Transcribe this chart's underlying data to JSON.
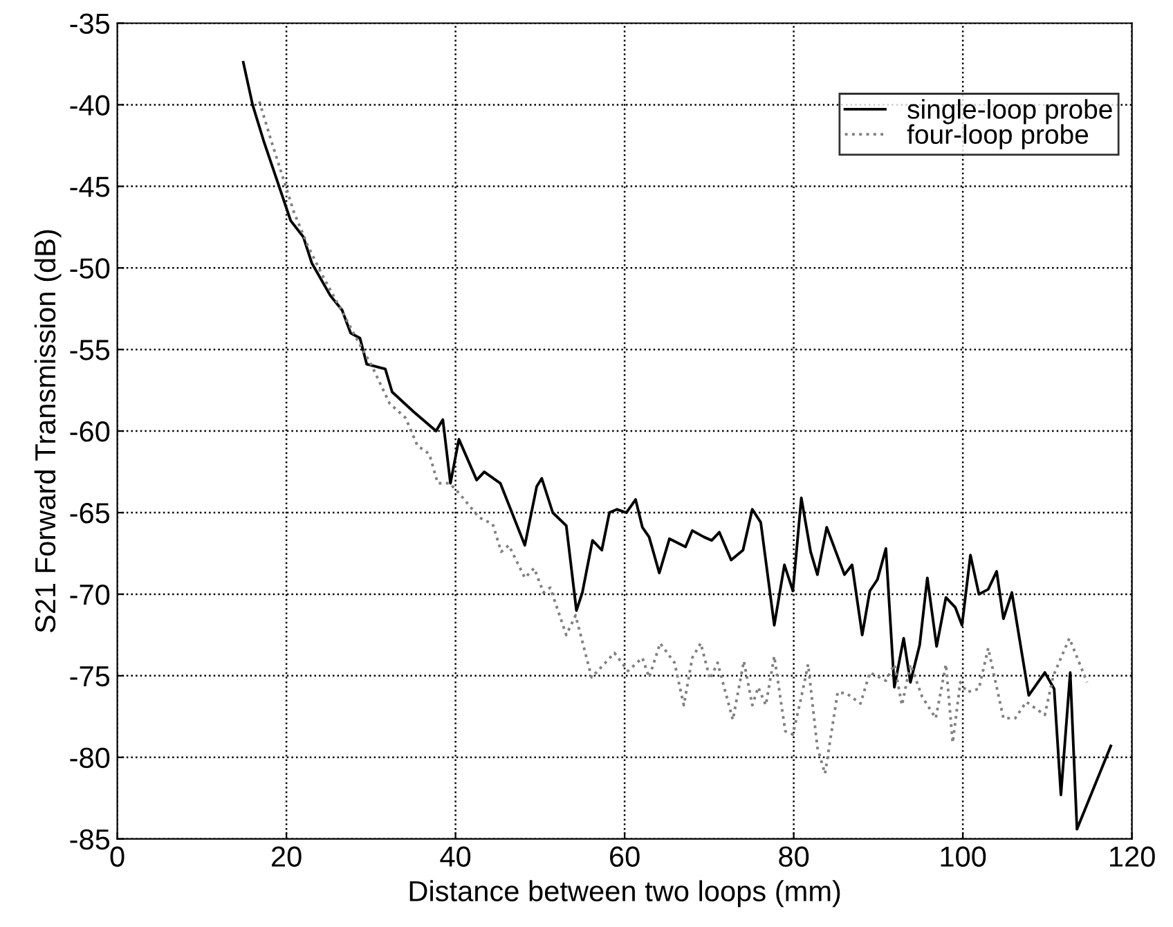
{
  "chart_data": {
    "type": "line",
    "xlabel": "Distance between two loops (mm)",
    "ylabel": "S21 Forward Transmission (dB)",
    "xlim": [
      0,
      120
    ],
    "xticks": [
      0,
      20,
      40,
      60,
      80,
      100,
      120
    ],
    "ylim": [
      -85,
      -35
    ],
    "yticks": [
      -85,
      -80,
      -75,
      -70,
      -65,
      -60,
      -55,
      -50,
      -45,
      -40,
      -35
    ],
    "grid": true,
    "legend": "top right",
    "marker": "none",
    "series": [
      {
        "name": "single-loop probe",
        "color": "#000000",
        "line_style": "solid",
        "x": [
          14.9,
          16.0,
          17.3,
          19.0,
          20.5,
          22.0,
          23.0,
          25.2,
          26.6,
          27.6,
          28.7,
          29.5,
          31.7,
          32.5,
          35.0,
          37.7,
          38.5,
          39.4,
          40.4,
          42.5,
          43.4,
          45.3,
          48.2,
          49.6,
          50.2,
          51.5,
          53.1,
          54.3,
          55.0,
          56.2,
          57.3,
          58.2,
          59.1,
          60.2,
          61.3,
          62.1,
          62.9,
          64.1,
          65.3,
          67.2,
          68.0,
          69.4,
          70.3,
          71.2,
          72.6,
          74.0,
          75.1,
          76.1,
          77.7,
          78.9,
          79.9,
          80.9,
          82.0,
          82.8,
          83.9,
          86.0,
          86.9,
          88.1,
          89.0,
          89.9,
          90.9,
          91.9,
          93.0,
          93.8,
          94.9,
          95.8,
          96.9,
          98.0,
          99.1,
          99.9,
          100.9,
          101.9,
          103.0,
          104.0,
          104.8,
          105.8,
          107.8,
          109.7,
          110.8,
          111.6,
          112.7,
          113.5,
          117.5
        ],
        "values": [
          -37.4,
          -40.0,
          -42.2,
          -44.8,
          -47.1,
          -48.1,
          -49.7,
          -51.7,
          -52.6,
          -54.0,
          -54.3,
          -55.9,
          -56.2,
          -57.6,
          -58.8,
          -60.0,
          -59.3,
          -63.2,
          -60.5,
          -63.0,
          -62.5,
          -63.2,
          -67.0,
          -63.4,
          -62.9,
          -65.0,
          -65.8,
          -71.0,
          -69.9,
          -66.7,
          -67.3,
          -65.0,
          -64.8,
          -65.0,
          -64.2,
          -65.9,
          -66.5,
          -68.7,
          -66.6,
          -67.1,
          -66.1,
          -66.5,
          -66.7,
          -66.2,
          -67.9,
          -67.3,
          -64.8,
          -65.6,
          -71.9,
          -68.2,
          -69.8,
          -64.1,
          -67.4,
          -68.8,
          -65.9,
          -68.8,
          -68.2,
          -72.5,
          -69.8,
          -69.1,
          -67.2,
          -75.7,
          -72.7,
          -75.4,
          -73.1,
          -69.0,
          -73.2,
          -70.2,
          -70.8,
          -71.9,
          -67.6,
          -70.0,
          -69.7,
          -68.6,
          -71.5,
          -69.9,
          -76.2,
          -74.8,
          -75.8,
          -82.3,
          -74.8,
          -84.4,
          -79.3
        ]
      },
      {
        "name": "four-loop probe",
        "color": "#808080",
        "line_style": "dotted",
        "x": [
          16.8,
          18.2,
          19.8,
          20.9,
          22.5,
          24.1,
          29.0,
          30.1,
          32.2,
          34.1,
          35.5,
          36.9,
          37.9,
          39.3,
          40.4,
          42.8,
          44.4,
          45.4,
          46.3,
          48.2,
          49.3,
          50.4,
          51.2,
          53.1,
          54.2,
          56.1,
          58.8,
          60.4,
          62.1,
          62.9,
          64.2,
          65.9,
          67.0,
          68.0,
          69.0,
          70.1,
          71.0,
          72.8,
          74.1,
          75.1,
          75.8,
          76.7,
          77.7,
          79.0,
          79.9,
          80.9,
          81.7,
          82.8,
          83.7,
          85.2,
          86.3,
          87.9,
          89.0,
          90.9,
          91.9,
          92.8,
          93.8,
          95.2,
          96.8,
          98.0,
          98.8,
          99.7,
          100.5,
          101.9,
          103.0,
          104.8,
          106.2,
          107.5,
          109.7,
          110.7,
          112.6,
          114.7
        ],
        "values": [
          -39.8,
          -42.2,
          -44.8,
          -46.6,
          -48.6,
          -50.3,
          -55.0,
          -56.0,
          -58.3,
          -59.2,
          -60.9,
          -61.4,
          -63.2,
          -63.2,
          -63.8,
          -65.3,
          -65.7,
          -67.4,
          -67.0,
          -69.0,
          -68.4,
          -69.9,
          -69.6,
          -72.5,
          -71.3,
          -75.1,
          -73.6,
          -74.7,
          -73.9,
          -75.1,
          -73.0,
          -74.2,
          -76.8,
          -73.9,
          -73.0,
          -75.2,
          -74.2,
          -77.7,
          -74.1,
          -76.8,
          -75.7,
          -76.8,
          -73.8,
          -78.4,
          -78.6,
          -76.3,
          -74.3,
          -79.4,
          -81.0,
          -76.0,
          -76.1,
          -76.7,
          -74.8,
          -75.3,
          -74.3,
          -76.8,
          -74.3,
          -76.3,
          -77.6,
          -74.3,
          -79.1,
          -75.4,
          -76.0,
          -75.8,
          -73.3,
          -77.6,
          -77.6,
          -76.6,
          -77.4,
          -75.0,
          -72.7,
          -75.4
        ]
      }
    ]
  }
}
